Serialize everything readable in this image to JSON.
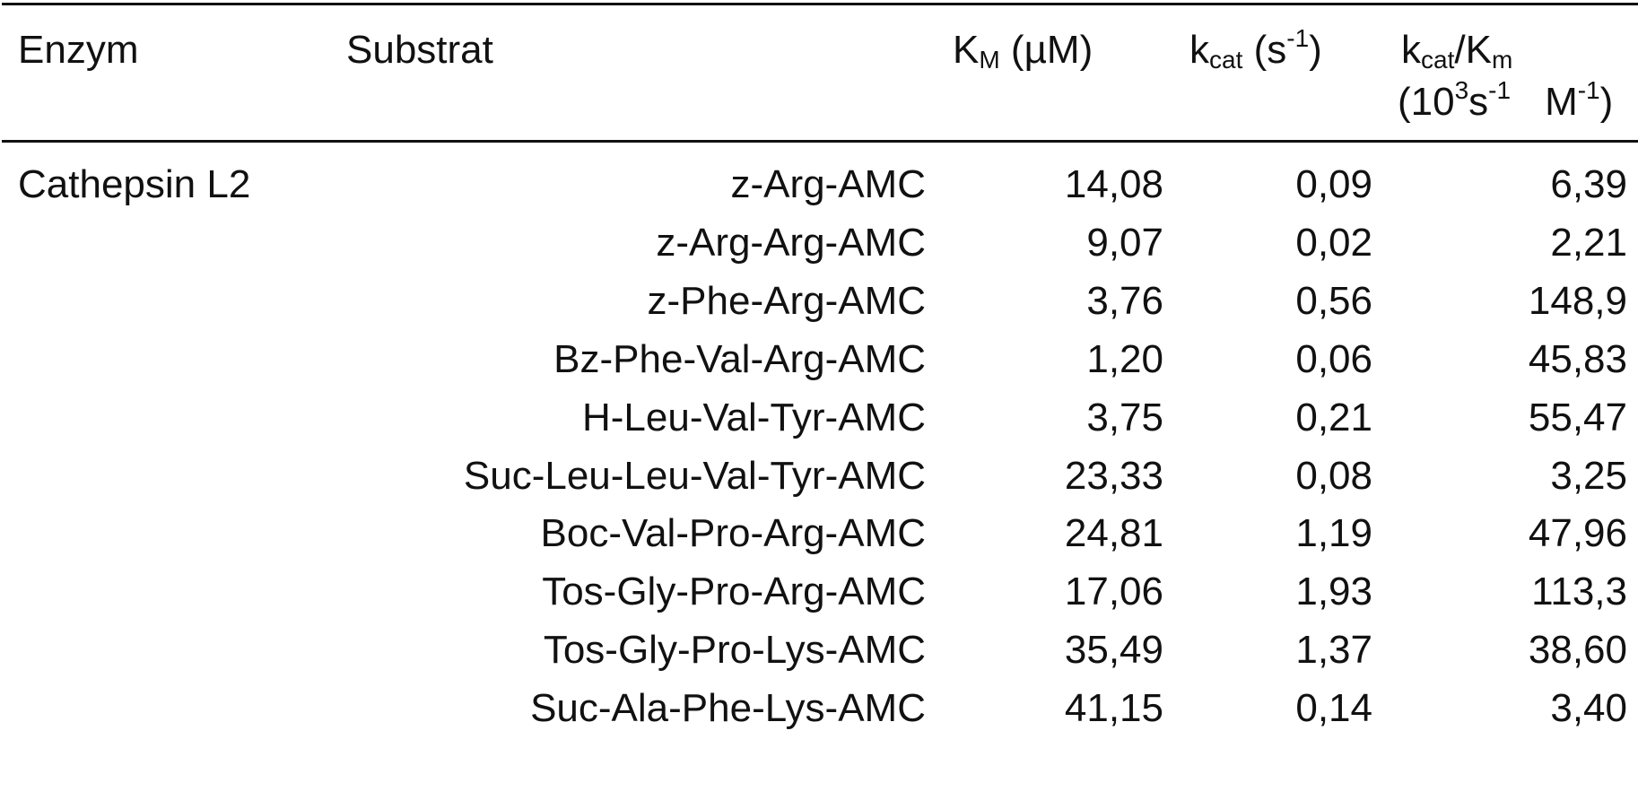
{
  "header": {
    "enzym": "Enzym",
    "substrat": "Substrat",
    "km": {
      "symbol": "K",
      "sub": "M",
      "unit": " (µM)"
    },
    "kcat": {
      "symbol": "k",
      "sub": "cat",
      "unit_open": " (s",
      "unit_sup": "-1",
      "unit_close": ")"
    },
    "ratio": {
      "k": "k",
      "k_sub": "cat",
      "slash": "/K",
      "m_sub": "m"
    },
    "ratio_units": {
      "open": "(10",
      "sup1": "3",
      "s": "s",
      "sup2": "-1",
      "m": "M",
      "sup3": "-1",
      "close": ")"
    }
  },
  "enzyme": "Cathepsin L2",
  "rows": [
    {
      "substrate": "z-Arg-AMC",
      "km": "14,08",
      "kcat": "0,09",
      "ratio": "6,39"
    },
    {
      "substrate": "z-Arg-Arg-AMC",
      "km": "9,07",
      "kcat": "0,02",
      "ratio": "2,21"
    },
    {
      "substrate": "z-Phe-Arg-AMC",
      "km": "3,76",
      "kcat": "0,56",
      "ratio": "148,9"
    },
    {
      "substrate": "Bz-Phe-Val-Arg-AMC",
      "km": "1,20",
      "kcat": "0,06",
      "ratio": "45,83"
    },
    {
      "substrate": "H-Leu-Val-Tyr-AMC",
      "km": "3,75",
      "kcat": "0,21",
      "ratio": "55,47"
    },
    {
      "substrate": "Suc-Leu-Leu-Val-Tyr-AMC",
      "km": "23,33",
      "kcat": "0,08",
      "ratio": "3,25"
    },
    {
      "substrate": "Boc-Val-Pro-Arg-AMC",
      "km": "24,81",
      "kcat": "1,19",
      "ratio": "47,96"
    },
    {
      "substrate": "Tos-Gly-Pro-Arg-AMC",
      "km": "17,06",
      "kcat": "1,93",
      "ratio": "113,3"
    },
    {
      "substrate": "Tos-Gly-Pro-Lys-AMC",
      "km": "35,49",
      "kcat": "1,37",
      "ratio": "38,60"
    },
    {
      "substrate": "Suc-Ala-Phe-Lys-AMC",
      "km": "41,15",
      "kcat": "0,14",
      "ratio": "3,40"
    }
  ]
}
